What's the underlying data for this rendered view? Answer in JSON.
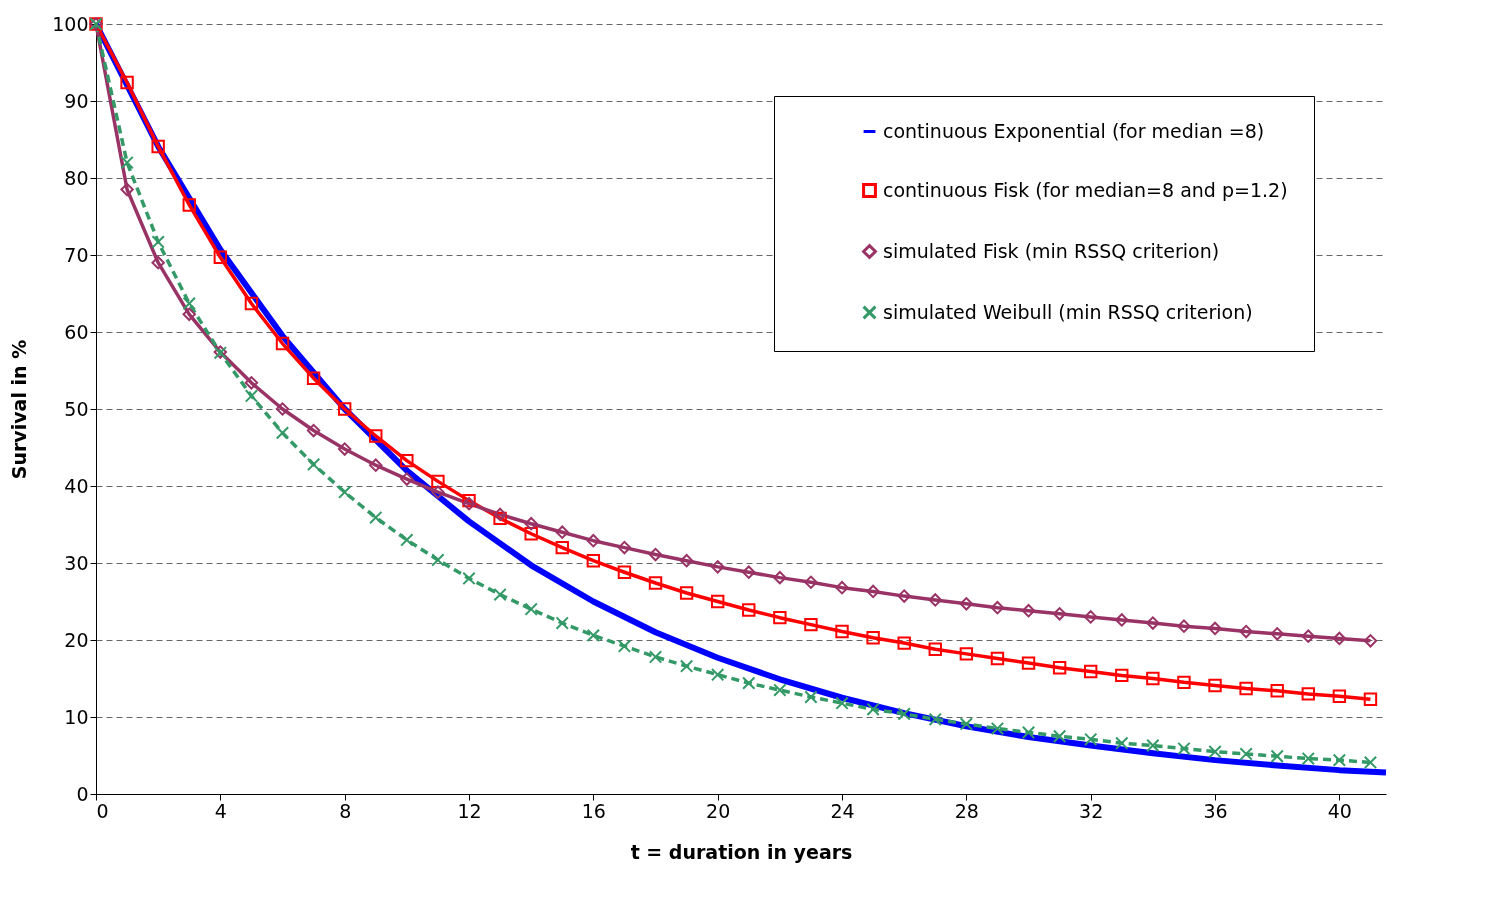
{
  "chart_data": {
    "type": "line",
    "xlabel": "t = duration in years",
    "ylabel": "Survival in %",
    "xlim": [
      0,
      41.5
    ],
    "xticks": [
      0,
      4,
      8,
      12,
      16,
      20,
      24,
      28,
      32,
      36,
      40
    ],
    "ylim": [
      0,
      100
    ],
    "yticks": [
      0,
      10,
      20,
      30,
      40,
      50,
      60,
      70,
      80,
      90,
      100
    ],
    "grid": "y",
    "legend": "top right",
    "series": [
      {
        "name": "continuous Exponential (for median =8)",
        "color": "#0000ff",
        "marker": "none",
        "line_style": "solid",
        "x": [
          0,
          2,
          4,
          6,
          8,
          10,
          12,
          14,
          16,
          18,
          20,
          22,
          24,
          26,
          28,
          30,
          32,
          34,
          36,
          38,
          40,
          41.5
        ],
        "values": [
          100,
          84.1,
          70.7,
          59.5,
          50,
          42.0,
          35.4,
          29.7,
          25,
          21.0,
          17.7,
          14.9,
          12.5,
          10.5,
          8.8,
          7.4,
          6.3,
          5.3,
          4.4,
          3.7,
          3.1,
          2.8
        ]
      },
      {
        "name": "continuous Fisk (for median=8 and p=1.2)",
        "color": "#ff0000",
        "marker": "square",
        "line_style": "solid",
        "x": [
          0,
          1,
          2,
          3,
          4,
          5,
          6,
          7,
          8,
          9,
          10,
          11,
          12,
          13,
          14,
          15,
          16,
          17,
          18,
          19,
          20,
          21,
          22,
          23,
          24,
          25,
          26,
          27,
          28,
          29,
          30,
          31,
          32,
          33,
          34,
          35,
          36,
          37,
          38,
          39,
          40,
          41
        ],
        "values": [
          100,
          92.4,
          84.1,
          76.5,
          69.7,
          63.7,
          58.5,
          54.0,
          50,
          46.5,
          43.3,
          40.6,
          38.1,
          35.8,
          33.8,
          32.0,
          30.3,
          28.8,
          27.4,
          26.1,
          25.0,
          23.9,
          22.9,
          22.0,
          21.1,
          20.3,
          19.6,
          18.8,
          18.2,
          17.6,
          17.0,
          16.4,
          15.9,
          15.4,
          15.0,
          14.5,
          14.1,
          13.7,
          13.4,
          13.0,
          12.7,
          12.3
        ]
      },
      {
        "name": "simulated Fisk (min RSSQ criterion)",
        "color": "#993366",
        "marker": "diamond",
        "line_style": "solid",
        "x": [
          0,
          1,
          2,
          3,
          4,
          5,
          6,
          7,
          8,
          9,
          10,
          11,
          12,
          13,
          14,
          15,
          16,
          17,
          18,
          19,
          20,
          21,
          22,
          23,
          24,
          25,
          26,
          27,
          28,
          29,
          30,
          31,
          32,
          33,
          34,
          35,
          36,
          37,
          38,
          39,
          40,
          41
        ],
        "values": [
          100,
          78.5,
          69,
          62.3,
          57.4,
          53.4,
          50,
          47.2,
          44.8,
          42.7,
          40.9,
          39.2,
          37.7,
          36.3,
          35.1,
          34,
          32.9,
          32,
          31.1,
          30.3,
          29.5,
          28.8,
          28.1,
          27.5,
          26.8,
          26.3,
          25.7,
          25.2,
          24.7,
          24.2,
          23.8,
          23.4,
          23,
          22.6,
          22.2,
          21.8,
          21.5,
          21.1,
          20.8,
          20.5,
          20.2,
          19.9
        ]
      },
      {
        "name": "simulated Weibull (min RSSQ criterion)",
        "color": "#339966",
        "marker": "cross",
        "line_style": "dashed",
        "x": [
          0,
          1,
          2,
          3,
          4,
          5,
          6,
          7,
          8,
          9,
          10,
          11,
          12,
          13,
          14,
          15,
          16,
          17,
          18,
          19,
          20,
          21,
          22,
          23,
          24,
          25,
          26,
          27,
          28,
          29,
          30,
          31,
          32,
          33,
          34,
          35,
          36,
          37,
          38,
          39,
          40,
          41
        ],
        "values": [
          100,
          82,
          71.7,
          63.7,
          57.3,
          51.7,
          46.9,
          42.8,
          39.2,
          35.9,
          33,
          30.4,
          28,
          25.9,
          24,
          22.2,
          20.6,
          19.2,
          17.8,
          16.6,
          15.5,
          14.4,
          13.5,
          12.6,
          11.8,
          11,
          10.4,
          9.7,
          9.1,
          8.5,
          8,
          7.5,
          7.1,
          6.6,
          6.3,
          5.9,
          5.5,
          5.2,
          4.9,
          4.6,
          4.4,
          4.1
        ]
      }
    ]
  }
}
